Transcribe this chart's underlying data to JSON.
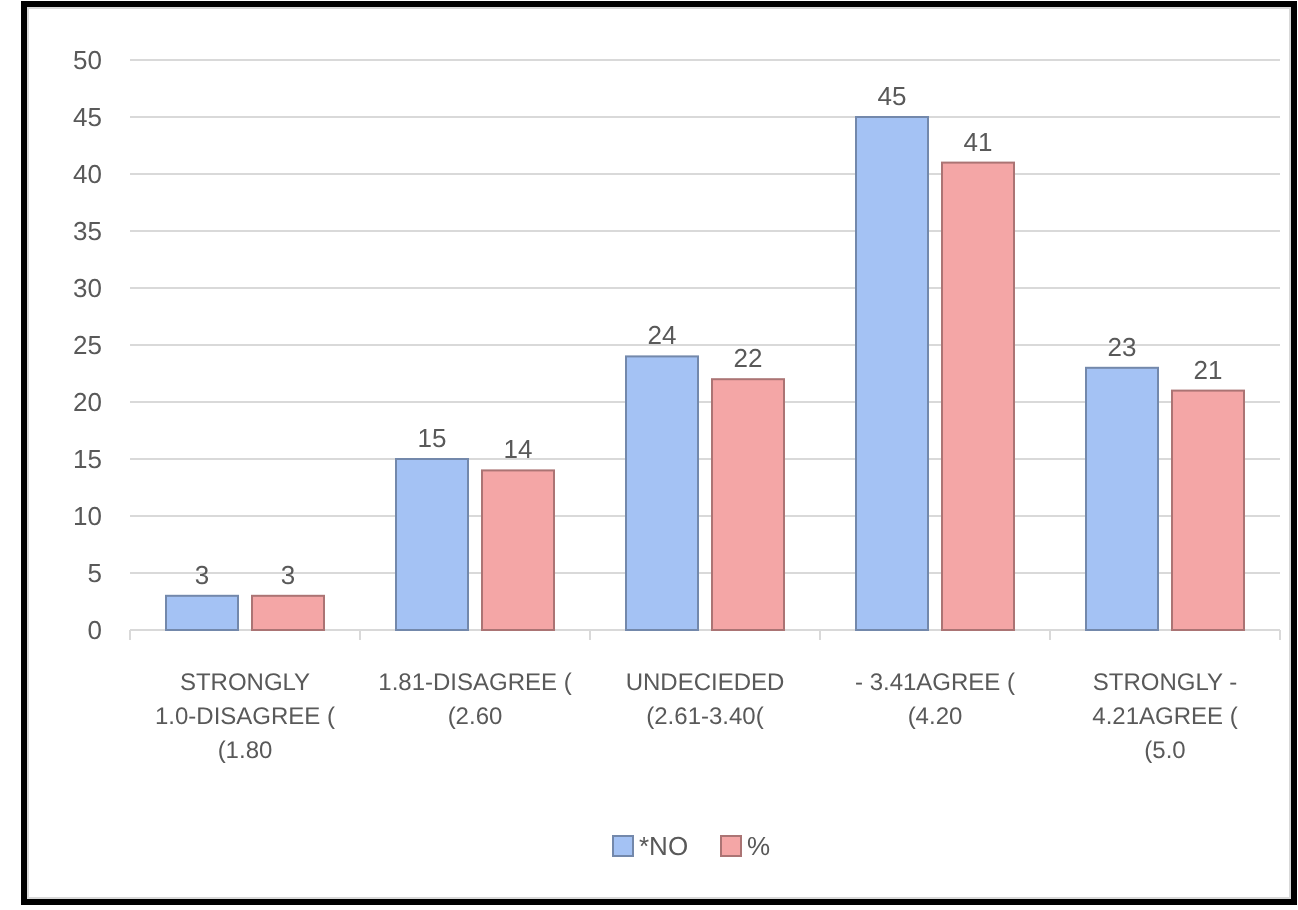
{
  "chart_data": {
    "type": "bar",
    "categories": [
      "STRONGLY 1.0-DISAGREE ( (1.80",
      "1.81-DISAGREE ( (2.60",
      "UNDECIEDED (2.61-3.40(",
      "- 3.41AGREE ( (4.20",
      "STRONGLY - 4.21AGREE ( (5.0"
    ],
    "series": [
      {
        "name": "*NO",
        "color": "#a4c2f4",
        "values": [
          3,
          15,
          24,
          45,
          23
        ]
      },
      {
        "name": "%",
        "color": "#f4a6a6",
        "values": [
          3,
          14,
          22,
          41,
          21
        ]
      }
    ],
    "ylim": [
      0,
      50
    ],
    "yticks": [
      0,
      5,
      10,
      15,
      20,
      25,
      30,
      35,
      40,
      45,
      50
    ],
    "grid": "y",
    "legend": "bottom",
    "data_labels": true
  }
}
